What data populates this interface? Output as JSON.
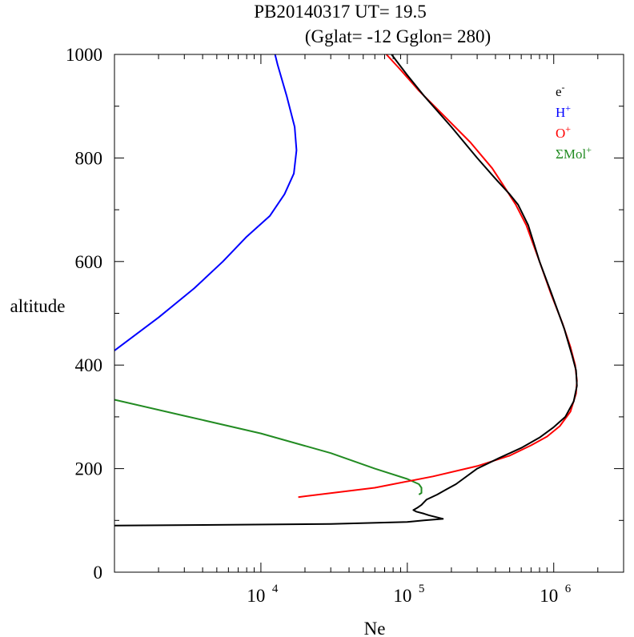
{
  "chart_data": {
    "type": "line",
    "title": "PB20140317   UT=  19.5",
    "subtitle": "(Gglat= -12   Gglon=  280)",
    "xlabel": "Ne",
    "ylabel": "altitude",
    "xscale": "log",
    "xlim": [
      1000,
      3000000
    ],
    "ylim": [
      0,
      1000
    ],
    "x_tick_labels": [
      {
        "value": 10000,
        "base": "10",
        "exp": "4"
      },
      {
        "value": 100000,
        "base": "10",
        "exp": "5"
      },
      {
        "value": 1000000,
        "base": "10",
        "exp": "6"
      }
    ],
    "y_ticks": [
      0,
      200,
      400,
      600,
      800,
      1000
    ],
    "legend_position": "top-right",
    "series": [
      {
        "name": "e-",
        "base": "e",
        "sup": "-",
        "color": "#000000",
        "points": [
          [
            1000,
            90
          ],
          [
            30000,
            93
          ],
          [
            100000,
            97
          ],
          [
            130000,
            100
          ],
          [
            175000,
            103
          ],
          [
            140000,
            110
          ],
          [
            130000,
            113
          ],
          [
            115000,
            117
          ],
          [
            110000,
            120
          ],
          [
            118000,
            125
          ],
          [
            125000,
            130
          ],
          [
            135000,
            140
          ],
          [
            160000,
            150
          ],
          [
            185000,
            160
          ],
          [
            215000,
            170
          ],
          [
            300000,
            200
          ],
          [
            420000,
            220
          ],
          [
            600000,
            240
          ],
          [
            800000,
            260
          ],
          [
            1000000,
            280
          ],
          [
            1200000,
            300
          ],
          [
            1370000,
            330
          ],
          [
            1440000,
            360
          ],
          [
            1420000,
            390
          ],
          [
            1330000,
            420
          ],
          [
            1180000,
            470
          ],
          [
            960000,
            540
          ],
          [
            800000,
            600
          ],
          [
            670000,
            670
          ],
          [
            570000,
            710
          ],
          [
            500000,
            730
          ],
          [
            400000,
            760
          ],
          [
            300000,
            800
          ],
          [
            200000,
            860
          ],
          [
            130000,
            920
          ],
          [
            100000,
            960
          ],
          [
            83000,
            990
          ],
          [
            78000,
            1000
          ]
        ]
      },
      {
        "name": "H+",
        "base": "H",
        "sup": "+",
        "color": "#0000ff",
        "points": [
          [
            1000,
            428
          ],
          [
            2000,
            492
          ],
          [
            3500,
            548
          ],
          [
            5500,
            600
          ],
          [
            8000,
            648
          ],
          [
            11500,
            688
          ],
          [
            14500,
            730
          ],
          [
            16800,
            770
          ],
          [
            17500,
            815
          ],
          [
            17000,
            860
          ],
          [
            15000,
            920
          ],
          [
            13000,
            980
          ],
          [
            12500,
            1000
          ]
        ]
      },
      {
        "name": "O+",
        "base": "O",
        "sup": "+",
        "color": "#ff0000",
        "points": [
          [
            18000,
            145
          ],
          [
            60000,
            163
          ],
          [
            150000,
            185
          ],
          [
            300000,
            205
          ],
          [
            500000,
            225
          ],
          [
            700000,
            245
          ],
          [
            900000,
            262
          ],
          [
            1100000,
            282
          ],
          [
            1300000,
            310
          ],
          [
            1420000,
            345
          ],
          [
            1440000,
            370
          ],
          [
            1400000,
            400
          ],
          [
            1300000,
            435
          ],
          [
            1150000,
            480
          ],
          [
            950000,
            540
          ],
          [
            800000,
            600
          ],
          [
            650000,
            670
          ],
          [
            550000,
            710
          ],
          [
            470000,
            740
          ],
          [
            380000,
            780
          ],
          [
            270000,
            830
          ],
          [
            180000,
            880
          ],
          [
            120000,
            930
          ],
          [
            90000,
            970
          ],
          [
            72000,
            1000
          ]
        ]
      },
      {
        "name": "ΣMol+",
        "base": "ΣMol",
        "sup": "+",
        "color": "#228b22",
        "points": [
          [
            1000,
            333
          ],
          [
            3000,
            302
          ],
          [
            10000,
            268
          ],
          [
            30000,
            230
          ],
          [
            60000,
            200
          ],
          [
            100000,
            180
          ],
          [
            120000,
            170
          ],
          [
            125000,
            163
          ],
          [
            125000,
            153
          ],
          [
            120000,
            150
          ]
        ]
      }
    ]
  }
}
